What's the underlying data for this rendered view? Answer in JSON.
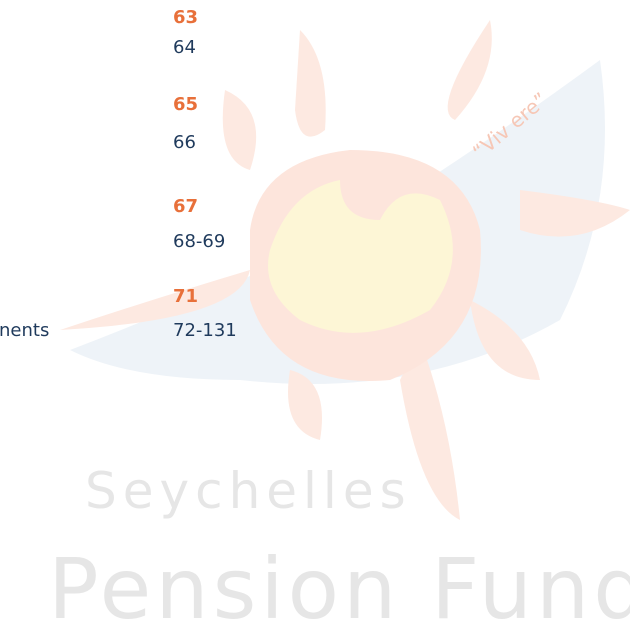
{
  "toc": [
    {
      "page": "63",
      "subpage": "64"
    },
    {
      "page": "65",
      "subpage": "66"
    },
    {
      "page": "67",
      "subpage": "68-69"
    },
    {
      "page": "71",
      "subpage": "72-131"
    }
  ],
  "partial_entry": "nents",
  "watermark": {
    "motto": "“Viv ere”",
    "line1": "Seychelles",
    "line2": "Pension Fund"
  }
}
